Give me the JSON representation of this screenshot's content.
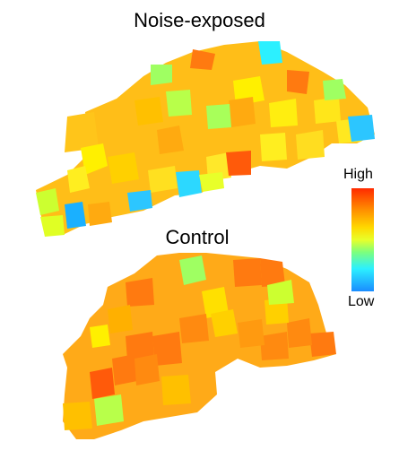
{
  "figure": {
    "top_panel": {
      "title": "Noise-exposed"
    },
    "bottom_panel": {
      "title": "Control"
    },
    "legend": {
      "high_label": "High",
      "low_label": "Low",
      "colors": [
        "#ff2a00",
        "#ff8a00",
        "#ffd800",
        "#e8ff2a",
        "#7dff7d",
        "#2cf0ff",
        "#1a8cff"
      ]
    },
    "cell_colors": {
      "orange_red": "#ff5a0a",
      "orange": "#ff9a10",
      "amber": "#ffbb10",
      "yellow": "#fff000",
      "yellow_green": "#d6ff2a",
      "green": "#9fff62",
      "cyan": "#2cf0ff",
      "blue": "#1ab0ff"
    }
  }
}
